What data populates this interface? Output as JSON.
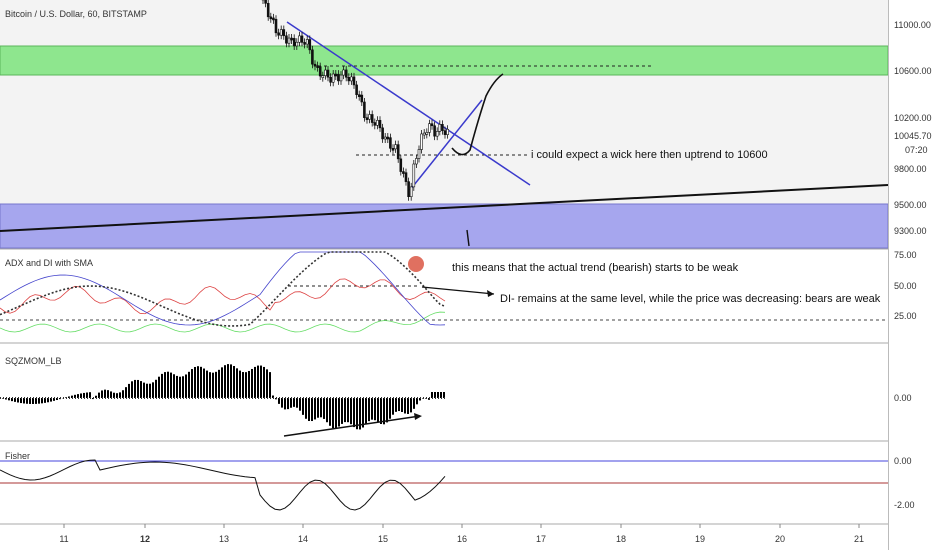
{
  "main_title": "Bitcoin / U.S. Dollar, 60, BITSTAMP",
  "price_axis": [
    "11000.00",
    "10600.00",
    "10200.00",
    "10045.70",
    "07:20",
    "9800.00",
    "9500.00",
    "9300.00"
  ],
  "adx_title": "ADX and DI with SMA",
  "adx_axis": [
    "75.00",
    "50.00",
    "25.00"
  ],
  "sqz_title": "SQZMOM_LB",
  "sqz_axis": [
    "0.00"
  ],
  "fisher_title": "Fisher",
  "fisher_axis": [
    "0.00",
    "-2.00"
  ],
  "annotations": {
    "wick_note": "i could expect a wick here then uptrend to 10600",
    "trend_note": "this means that the actual trend (bearish) starts to be weak",
    "di_note": "DI- remains at the same level, while the price was decreasing: bears are weak"
  },
  "x_axis": [
    "11",
    "12",
    "13",
    "14",
    "15",
    "16",
    "17",
    "18",
    "19",
    "20",
    "21"
  ],
  "colors": {
    "green_zone": "#8ee68e",
    "blue_zone": "#a6a6ee",
    "trendline": "#3a3acc",
    "bull": "#44bb44",
    "bear": "#ee5555"
  }
}
